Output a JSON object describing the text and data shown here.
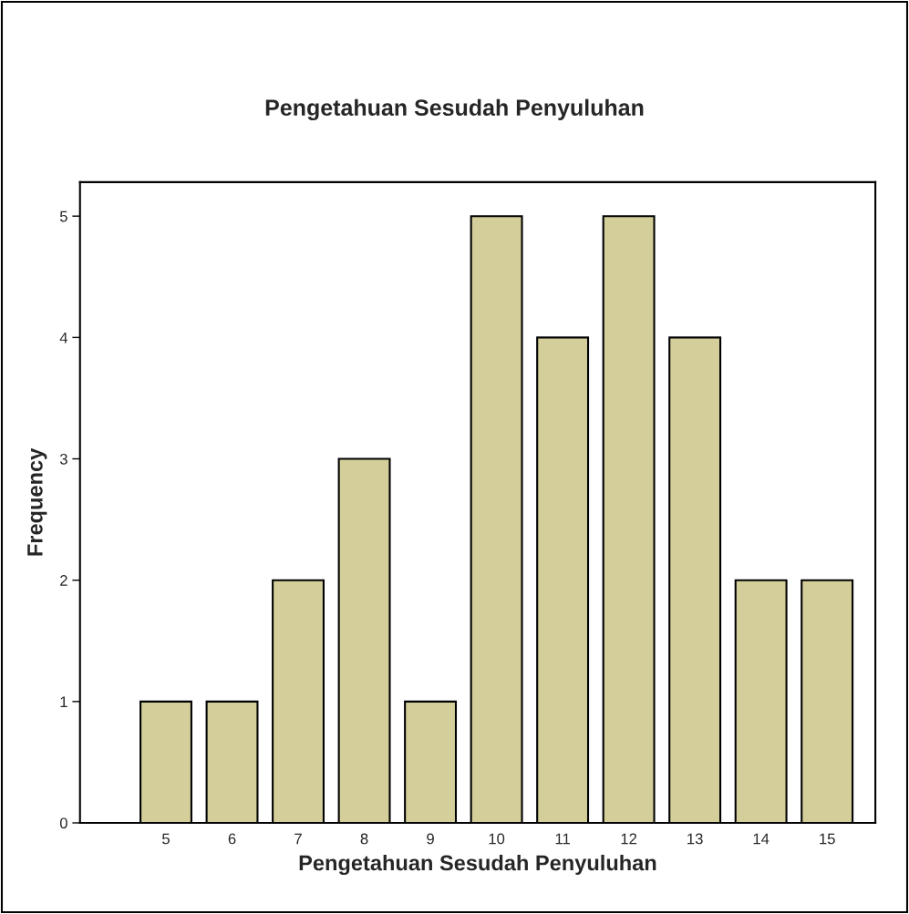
{
  "chart_data": {
    "type": "bar",
    "title": "Pengetahuan Sesudah Penyuluhan",
    "xlabel": "Pengetahuan Sesudah Penyuluhan",
    "ylabel": "Frequency",
    "categories": [
      "5",
      "6",
      "7",
      "8",
      "9",
      "10",
      "11",
      "12",
      "13",
      "14",
      "15"
    ],
    "values": [
      1,
      1,
      2,
      3,
      1,
      5,
      4,
      5,
      4,
      2,
      2
    ],
    "color": "#d4cf9a",
    "ylim": [
      0,
      5.28
    ],
    "yticks": [
      0,
      1,
      2,
      3,
      4,
      5
    ],
    "grid": false
  }
}
